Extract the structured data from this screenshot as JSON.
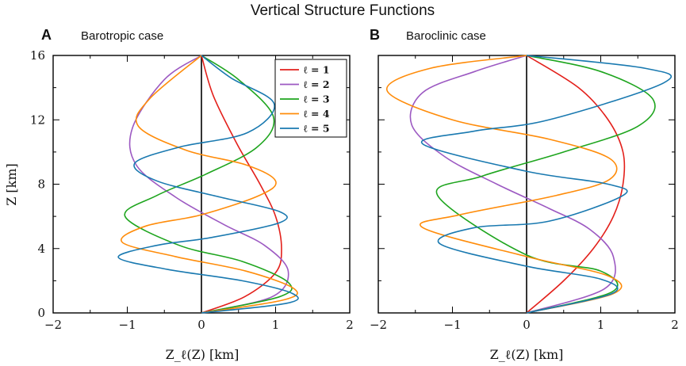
{
  "figure_title": "Vertical Structure Functions",
  "ylabel": "Z [km]",
  "colors": {
    "l1": "#e3201b",
    "l2": "#9c59c2",
    "l3": "#1ea51e",
    "l4": "#ff8c0a",
    "l5": "#1979b0"
  },
  "chart_data": [
    {
      "type": "line",
      "panel_label": "A",
      "title": "Barotropic case",
      "xlabel": "Z_ℓ(Z) [km]",
      "xlim": [
        -2,
        2
      ],
      "ylim": [
        0,
        16
      ],
      "xticks": [
        -2,
        -1,
        0,
        1,
        2
      ],
      "yticks": [
        0,
        4,
        8,
        12,
        16
      ],
      "grid": false,
      "legend_position": "top-right",
      "series": [
        {
          "name": "ℓ = 1",
          "color": "#e3201b",
          "x": [
            0,
            0.58,
            1.0,
            1.08,
            1.0,
            0.79,
            0.48,
            0.16,
            0
          ],
          "y": [
            0,
            1,
            2.5,
            4,
            6,
            8,
            10.5,
            13.5,
            16
          ]
        },
        {
          "name": "ℓ = 2",
          "color": "#9c59c2",
          "x": [
            0,
            0.95,
            1.17,
            0.85,
            0.3,
            -0.35,
            -0.88,
            -0.93,
            -0.5,
            0
          ],
          "y": [
            0,
            1,
            2.6,
            4.2,
            5.5,
            7.2,
            9.2,
            11.5,
            14.5,
            16
          ]
        },
        {
          "name": "ℓ = 3",
          "color": "#1ea51e",
          "x": [
            0,
            1.05,
            1.17,
            0.55,
            -0.3,
            -1.03,
            -0.6,
            0.05,
            0.75,
            0.97,
            0.5,
            0
          ],
          "y": [
            0,
            1,
            1.9,
            3.2,
            4.2,
            6,
            7.3,
            8.6,
            10.3,
            12.2,
            14.5,
            16
          ]
        },
        {
          "name": "ℓ = 4",
          "color": "#ff8c0a",
          "x": [
            0,
            1.1,
            1.25,
            0.6,
            -0.35,
            -1.07,
            -0.75,
            0,
            0.78,
            1.0,
            0.6,
            -0.2,
            -0.85,
            -0.7,
            0
          ],
          "y": [
            0,
            0.8,
            1.5,
            2.6,
            3.5,
            4.4,
            5.4,
            6.1,
            7.3,
            8.2,
            9.2,
            10.1,
            11.6,
            13.3,
            16
          ]
        },
        {
          "name": "ℓ = 5",
          "color": "#1979b0",
          "x": [
            0,
            1.15,
            1.23,
            0.55,
            -0.45,
            -1.12,
            -0.6,
            0.15,
            1.05,
            1.05,
            0.25,
            -0.6,
            -0.9,
            -0.3,
            0.62,
            0.98,
            0.4,
            0
          ],
          "y": [
            0,
            0.6,
            1.2,
            2.0,
            2.7,
            3.45,
            4.2,
            4.7,
            5.6,
            6.3,
            7.2,
            8.2,
            9.3,
            10.3,
            11.2,
            13,
            14.6,
            16
          ]
        }
      ]
    },
    {
      "type": "line",
      "panel_label": "B",
      "title": "Baroclinic case",
      "xlabel": "Z_ℓ(Z) [km]",
      "xlim": [
        -2,
        2
      ],
      "ylim": [
        0,
        16
      ],
      "xticks": [
        -2,
        -1,
        0,
        1,
        2
      ],
      "yticks": [
        0,
        4,
        8,
        12,
        16
      ],
      "grid": false,
      "legend_position": "none",
      "series": [
        {
          "name": "ℓ = 1",
          "color": "#e3201b",
          "x": [
            0,
            0.5,
            0.9,
            1.17,
            1.3,
            1.3,
            1.1,
            0.7,
            0
          ],
          "y": [
            0,
            2,
            4,
            6,
            8,
            10,
            12,
            14,
            16
          ]
        },
        {
          "name": "ℓ = 2",
          "color": "#9c59c2",
          "x": [
            0,
            1.05,
            1.17,
            0.85,
            0.3,
            -0.4,
            -1.1,
            -1.55,
            -1.4,
            -0.7,
            0
          ],
          "y": [
            0,
            1.5,
            3.5,
            5.2,
            6.5,
            8,
            9.7,
            11.7,
            13.7,
            15,
            16
          ]
        },
        {
          "name": "ℓ = 3",
          "color": "#1ea51e",
          "x": [
            0,
            1.15,
            1.0,
            0,
            -1.2,
            -0.6,
            0.5,
            1.5,
            1.7,
            1.0,
            0
          ],
          "y": [
            0,
            1.3,
            2.6,
            3.6,
            7.3,
            8.5,
            10,
            11.6,
            13.3,
            15,
            16
          ]
        },
        {
          "name": "ℓ = 4",
          "color": "#ff8c0a",
          "x": [
            0,
            1.17,
            1.1,
            0,
            -1.4,
            -0.9,
            0.4,
            1.12,
            1.12,
            0.3,
            -1,
            -1.88,
            -1.3,
            0
          ],
          "y": [
            0,
            1.2,
            2.3,
            3.5,
            5.3,
            6.1,
            7.3,
            8.3,
            9.6,
            10.8,
            12,
            13.8,
            15.2,
            16
          ]
        },
        {
          "name": "ℓ = 5",
          "color": "#1979b0",
          "x": [
            0,
            1.15,
            1.0,
            0,
            -1.17,
            -0.7,
            0.3,
            1.3,
            1.1,
            0,
            -1.4,
            -0.7,
            0.3,
            1.85,
            1.6,
            0
          ],
          "y": [
            0,
            1.2,
            2.1,
            2.9,
            4.3,
            5.3,
            5.7,
            7.3,
            8.0,
            8.8,
            10.5,
            11.3,
            12,
            14.3,
            15.2,
            16
          ]
        }
      ]
    }
  ]
}
